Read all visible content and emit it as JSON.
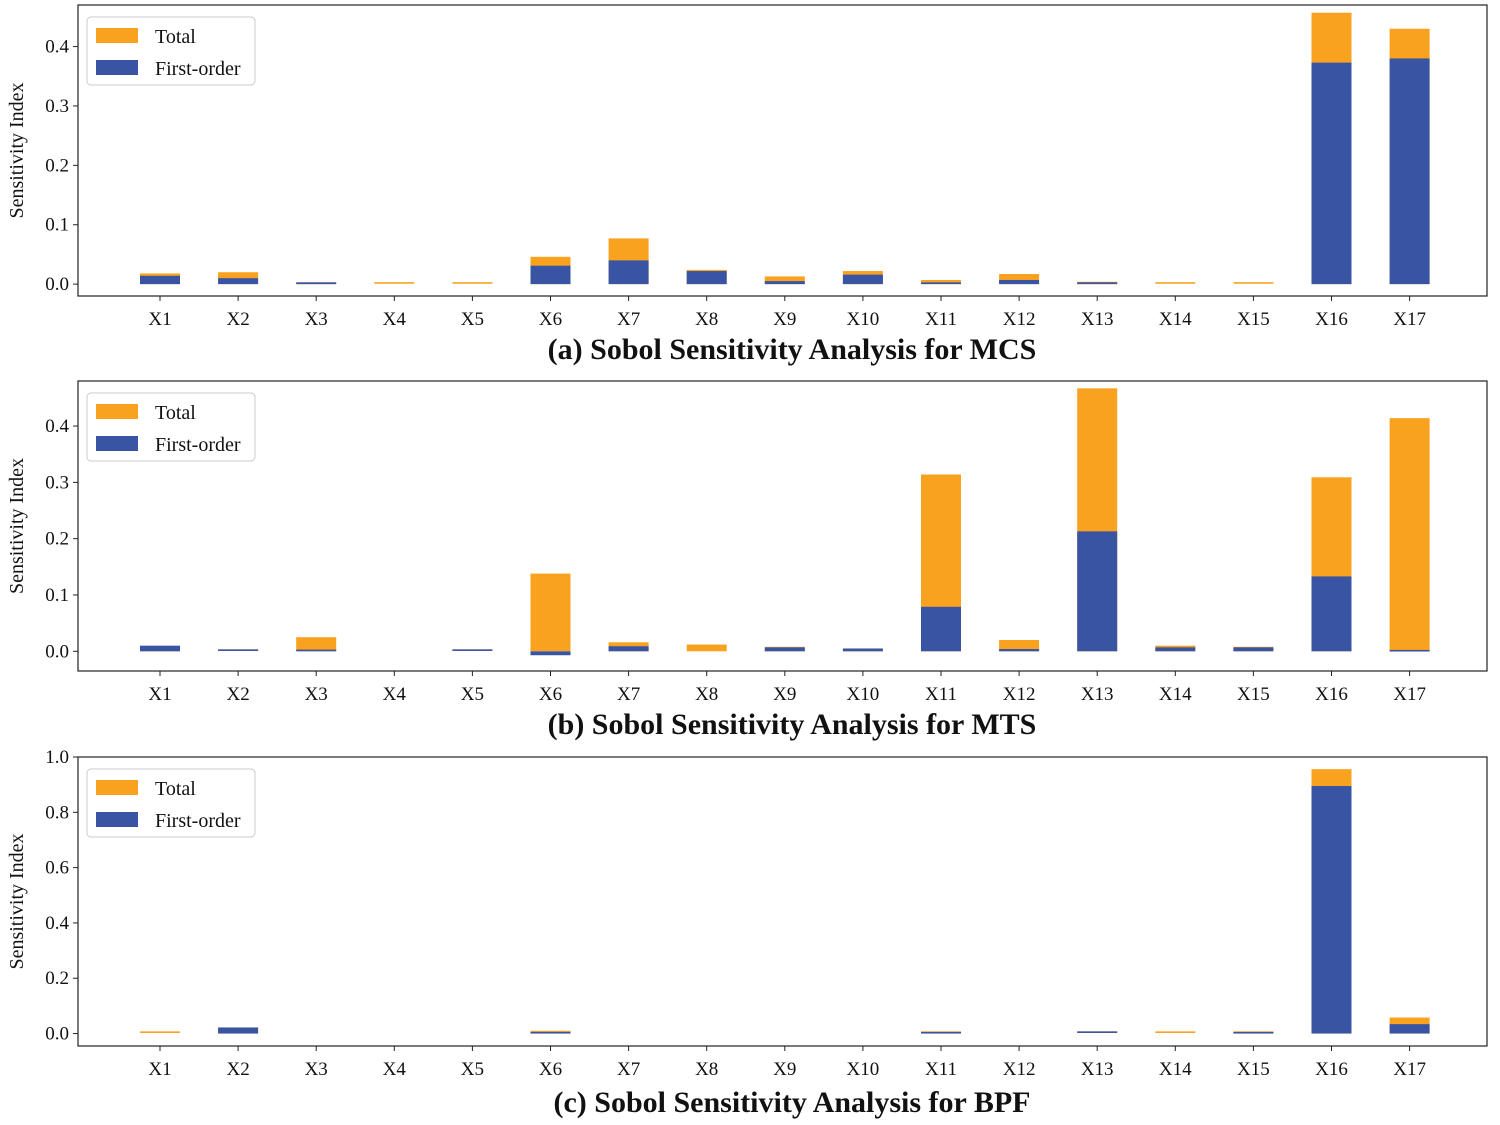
{
  "colors": {
    "total": "#F9A21F",
    "first_order": "#3A54A4",
    "axis": "#222222"
  },
  "chart_data": [
    {
      "type": "bar",
      "title": "(a) Sobol Sensitivity Analysis  for MCS",
      "xlabel": "",
      "ylabel": "Sensitivity Index",
      "ylim": [
        -0.02,
        0.47
      ],
      "yticks": [
        0.0,
        0.1,
        0.2,
        0.3,
        0.4
      ],
      "ytick_labels": [
        "0.0",
        "0.1",
        "0.2",
        "0.3",
        "0.4"
      ],
      "legend": [
        "Total",
        "First-order"
      ],
      "legend_position": "top-left",
      "categories": [
        "X1",
        "X2",
        "X3",
        "X4",
        "X5",
        "X6",
        "X7",
        "X8",
        "X9",
        "X10",
        "X11",
        "X12",
        "X13",
        "X14",
        "X15",
        "X16",
        "X17"
      ],
      "series": [
        {
          "name": "Total",
          "values": [
            0.018,
            0.02,
            0.003,
            0.002,
            0.002,
            0.046,
            0.077,
            0.024,
            0.013,
            0.022,
            0.007,
            0.017,
            0.004,
            0.002,
            0.002,
            0.457,
            0.43
          ]
        },
        {
          "name": "First-order",
          "values": [
            0.014,
            0.01,
            0.003,
            0.0,
            0.0,
            0.031,
            0.04,
            0.022,
            0.005,
            0.016,
            0.003,
            0.007,
            0.003,
            0.0,
            0.0,
            0.373,
            0.38
          ]
        }
      ]
    },
    {
      "type": "bar",
      "title": "(b) Sobol Sensitivity Analysis  for MTS",
      "xlabel": "",
      "ylabel": "Sensitivity Index",
      "ylim": [
        -0.035,
        0.48
      ],
      "yticks": [
        0.0,
        0.1,
        0.2,
        0.3,
        0.4
      ],
      "ytick_labels": [
        "0.0",
        "0.1",
        "0.2",
        "0.3",
        "0.4"
      ],
      "legend": [
        "Total",
        "First-order"
      ],
      "legend_position": "top-left",
      "categories": [
        "X1",
        "X2",
        "X3",
        "X4",
        "X5",
        "X6",
        "X7",
        "X8",
        "X9",
        "X10",
        "X11",
        "X12",
        "X13",
        "X14",
        "X15",
        "X16",
        "X17"
      ],
      "series": [
        {
          "name": "Total",
          "values": [
            0.009,
            0.002,
            0.025,
            0.0,
            0.002,
            0.138,
            0.016,
            0.012,
            0.008,
            0.005,
            0.314,
            0.02,
            0.467,
            0.01,
            0.008,
            0.309,
            0.414
          ]
        },
        {
          "name": "First-order",
          "values": [
            0.01,
            0.002,
            0.003,
            0.0,
            0.002,
            -0.007,
            0.009,
            0.0,
            0.007,
            0.005,
            0.079,
            0.004,
            0.213,
            0.007,
            0.007,
            0.133,
            0.001
          ]
        }
      ]
    },
    {
      "type": "bar",
      "title": "(c) Sobol Sensitivity Analysis  for BPF",
      "xlabel": "",
      "ylabel": "Sensitivity Index",
      "ylim": [
        -0.045,
        1.0
      ],
      "yticks": [
        0.0,
        0.2,
        0.4,
        0.6,
        0.8,
        1.0
      ],
      "ytick_labels": [
        "0.0",
        "0.2",
        "0.4",
        "0.6",
        "0.8",
        "1.0"
      ],
      "legend": [
        "Total",
        "First-order"
      ],
      "legend_position": "top-left",
      "categories": [
        "X1",
        "X2",
        "X3",
        "X4",
        "X5",
        "X6",
        "X7",
        "X8",
        "X9",
        "X10",
        "X11",
        "X12",
        "X13",
        "X14",
        "X15",
        "X16",
        "X17"
      ],
      "series": [
        {
          "name": "Total",
          "values": [
            0.005,
            0.022,
            0.0,
            0.0,
            0.0,
            0.01,
            0.0,
            0.0,
            0.0,
            0.0,
            0.008,
            0.0,
            0.005,
            0.005,
            0.008,
            0.956,
            0.058
          ]
        },
        {
          "name": "First-order",
          "values": [
            0.0,
            0.022,
            0.0,
            0.0,
            0.0,
            0.006,
            0.0,
            0.0,
            0.0,
            0.0,
            0.006,
            0.0,
            0.005,
            0.0,
            0.006,
            0.895,
            0.034
          ]
        }
      ]
    }
  ]
}
